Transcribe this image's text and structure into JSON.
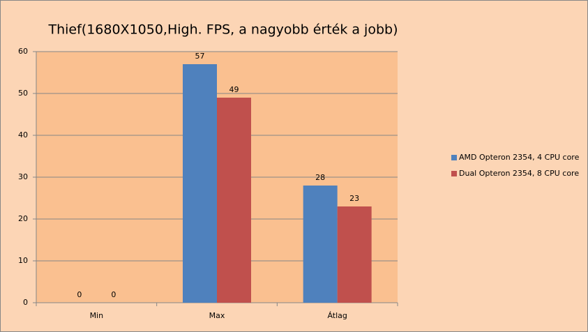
{
  "chart_data": {
    "type": "bar",
    "title": "Thief(1680X1050,High. FPS, a nagyobb érték a jobb)",
    "categories": [
      "Min",
      "Max",
      "Átlag"
    ],
    "series": [
      {
        "name": "AMD Opteron 2354, 4 CPU core",
        "color": "#4f81bd",
        "values": [
          0,
          57,
          28
        ]
      },
      {
        "name": "Dual Opteron 2354, 8 CPU core",
        "color": "#c0504d",
        "values": [
          0,
          49,
          23
        ]
      }
    ],
    "ylim": [
      0,
      60
    ],
    "yticks": [
      0,
      10,
      20,
      30,
      40,
      50,
      60
    ],
    "grid": true,
    "legend": "right"
  }
}
